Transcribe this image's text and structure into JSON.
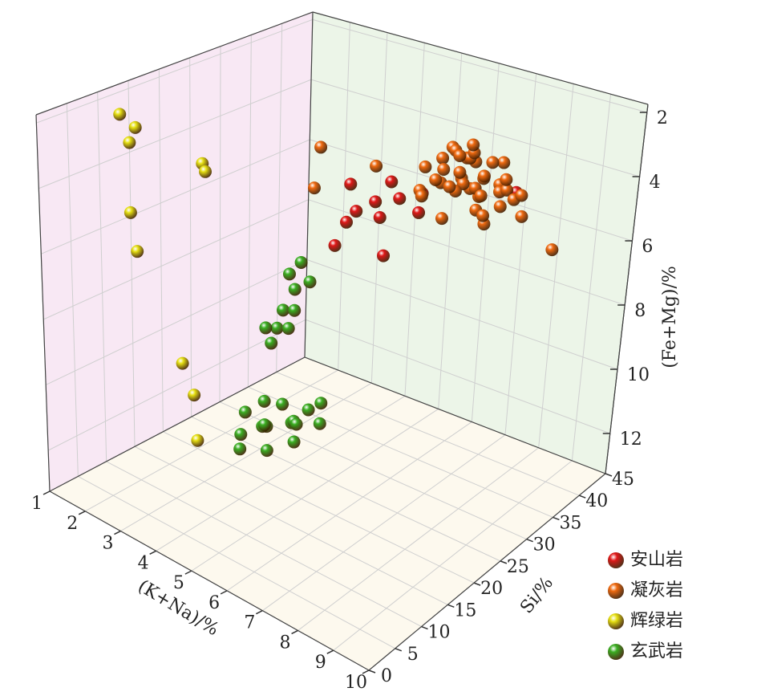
{
  "chart_data": {
    "type": "scatter3d",
    "xlabel": "(K+Na)/%",
    "ylabel": "Si/%",
    "zlabel": "(Fe+Mg)/%",
    "xlim": [
      1,
      10
    ],
    "ylim": [
      0,
      45
    ],
    "zlim": [
      13.25,
      1.75
    ],
    "xticks": [
      1,
      2,
      3,
      4,
      5,
      6,
      7,
      8,
      9,
      10
    ],
    "yticks": [
      0,
      5,
      10,
      15,
      20,
      25,
      30,
      35,
      40,
      45
    ],
    "zticks": [
      2,
      4,
      6,
      8,
      10,
      12
    ],
    "grid": true,
    "legend": "lower right",
    "series": [
      {
        "name": "安山岩",
        "color": "#e01818",
        "x": [
          3.3,
          3.8,
          3.7,
          4.1,
          4.0,
          4.3,
          4.5,
          4.8,
          4.6,
          5.2,
          4.2,
          7.2
        ],
        "y": [
          38,
          36,
          35,
          40,
          38,
          37,
          39,
          41,
          36,
          38,
          30,
          42
        ],
        "z": [
          6.0,
          6.5,
          6.8,
          5.8,
          6.3,
          6.6,
          6.1,
          6.0,
          7.6,
          6.2,
          6.9,
          5.2
        ]
      },
      {
        "name": "凝灰岩",
        "color": "#f06a10",
        "x": [
          1.8,
          2.3,
          3.5,
          8.6,
          5.0,
          5.3,
          5.6,
          5.8,
          6.0,
          6.2,
          6.4,
          6.6,
          6.8,
          7.0,
          7.2,
          5.2,
          5.5,
          5.9,
          6.1,
          6.3,
          6.5,
          6.7,
          6.9,
          7.1,
          7.4,
          5.4,
          5.7,
          6.0,
          6.2,
          6.6,
          6.9,
          7.3,
          5.1,
          5.8,
          6.4,
          7.0,
          5.6,
          6.3,
          6.8,
          7.5,
          6.0,
          6.5,
          5.3,
          7.7,
          6.1
        ],
        "y": [
          42,
          38,
          41,
          40,
          40,
          41,
          39,
          42,
          40,
          41,
          39,
          40,
          42,
          41,
          39,
          38,
          40,
          41,
          39,
          42,
          40,
          38,
          41,
          40,
          39,
          42,
          41,
          38,
          40,
          39,
          42,
          41,
          39,
          40,
          41,
          38,
          42,
          40,
          39,
          41,
          37,
          42,
          40,
          40,
          41
        ],
        "z": [
          5.7,
          6.5,
          5.6,
          6.3,
          5.0,
          4.7,
          5.2,
          4.6,
          5.0,
          4.5,
          5.1,
          4.8,
          4.4,
          5.0,
          4.7,
          5.5,
          4.9,
          5.3,
          4.7,
          5.0,
          5.4,
          4.9,
          5.2,
          5.5,
          4.8,
          4.4,
          5.6,
          5.1,
          4.3,
          5.7,
          4.9,
          5.3,
          5.8,
          4.2,
          5.5,
          5.9,
          4.6,
          4.1,
          5.8,
          5.1,
          6.0,
          4.5,
          5.3,
          5.6,
          4.0
        ]
      },
      {
        "name": "辉绿岩",
        "color": "#e6e012",
        "x": [
          1,
          1,
          1,
          1,
          1,
          1,
          1,
          1,
          1,
          2
        ],
        "y": [
          13.5,
          16,
          15,
          27,
          27.5,
          15,
          16,
          23.5,
          25.5,
          20
        ],
        "z": [
          2.7,
          3.3,
          3.7,
          5.3,
          5.6,
          5.9,
          7.2,
          11.4,
          12.6,
          13
        ]
      },
      {
        "name": "玄武岩",
        "color": "#3aae22",
        "x": [
          1,
          1,
          1,
          1,
          1,
          1,
          1,
          1,
          1,
          1.1,
          2.3,
          2.5,
          2.7,
          2.9,
          3.1,
          3.3,
          3.5,
          2.6,
          2.8,
          3.0,
          3.2,
          3.4,
          2.4,
          3.6,
          2.9,
          3.1
        ],
        "y": [
          42,
          43,
          44,
          41,
          40,
          43,
          38,
          39,
          42,
          45,
          30,
          32,
          28,
          26,
          30,
          34,
          28,
          24,
          27,
          31,
          25,
          29,
          26,
          32,
          22,
          33
        ],
        "z": [
          10.2,
          10.8,
          10.0,
          11.3,
          11.8,
          11.5,
          11.6,
          12.2,
          12.0,
          10.7,
          12.6,
          12.8,
          13.0,
          12.7,
          12.9,
          12.6,
          13.1,
          12.9,
          12.8,
          13.0,
          13.2,
          12.7,
          12.5,
          12.9,
          13.0,
          12.8
        ]
      }
    ]
  }
}
